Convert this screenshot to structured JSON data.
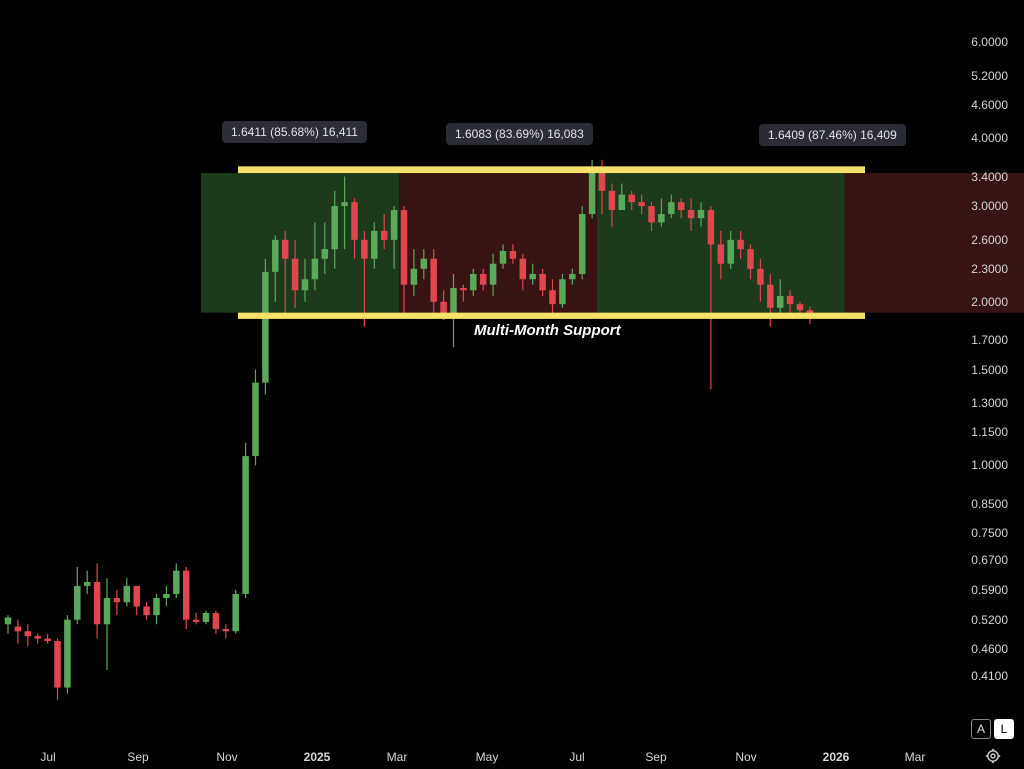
{
  "chart_data": {
    "type": "candlestick",
    "y_scale": "log",
    "ylim": [
      0.37,
      6.6
    ],
    "y_ticks": [
      "6.0000",
      "5.2000",
      "4.6000",
      "4.0000",
      "3.4000",
      "3.0000",
      "2.6000",
      "2.3000",
      "2.0000",
      "1.7000",
      "1.5000",
      "1.3000",
      "1.1500",
      "1.0000",
      "0.8500",
      "0.7500",
      "0.6700",
      "0.5900",
      "0.5200",
      "0.4600",
      "0.4100"
    ],
    "x_ticks": [
      {
        "label": "Jul",
        "bold": false
      },
      {
        "label": "Sep",
        "bold": false
      },
      {
        "label": "Nov",
        "bold": false
      },
      {
        "label": "2025",
        "bold": true
      },
      {
        "label": "Mar",
        "bold": false
      },
      {
        "label": "May",
        "bold": false
      },
      {
        "label": "Jul",
        "bold": false
      },
      {
        "label": "Sep",
        "bold": false
      },
      {
        "label": "Nov",
        "bold": false
      },
      {
        "label": "2026",
        "bold": true
      },
      {
        "label": "Mar",
        "bold": false
      }
    ],
    "candles": [
      [
        0.51,
        0.525,
        0.53,
        0.49
      ],
      [
        0.505,
        0.495,
        0.52,
        0.47
      ],
      [
        0.495,
        0.485,
        0.51,
        0.465
      ],
      [
        0.485,
        0.48,
        0.49,
        0.47
      ],
      [
        0.48,
        0.475,
        0.49,
        0.47
      ],
      [
        0.475,
        0.39,
        0.48,
        0.37
      ],
      [
        0.39,
        0.52,
        0.53,
        0.38
      ],
      [
        0.52,
        0.6,
        0.65,
        0.51
      ],
      [
        0.6,
        0.61,
        0.64,
        0.58
      ],
      [
        0.61,
        0.51,
        0.66,
        0.48
      ],
      [
        0.51,
        0.57,
        0.62,
        0.42
      ],
      [
        0.57,
        0.56,
        0.59,
        0.53
      ],
      [
        0.56,
        0.6,
        0.62,
        0.55
      ],
      [
        0.6,
        0.55,
        0.6,
        0.53
      ],
      [
        0.55,
        0.53,
        0.56,
        0.52
      ],
      [
        0.53,
        0.57,
        0.58,
        0.51
      ],
      [
        0.57,
        0.58,
        0.6,
        0.55
      ],
      [
        0.58,
        0.64,
        0.66,
        0.57
      ],
      [
        0.64,
        0.52,
        0.65,
        0.5
      ],
      [
        0.52,
        0.515,
        0.535,
        0.51
      ],
      [
        0.515,
        0.535,
        0.54,
        0.51
      ],
      [
        0.535,
        0.5,
        0.54,
        0.49
      ],
      [
        0.5,
        0.495,
        0.51,
        0.48
      ],
      [
        0.495,
        0.58,
        0.59,
        0.49
      ],
      [
        0.58,
        1.04,
        1.1,
        0.57
      ],
      [
        1.04,
        1.42,
        1.5,
        1.0
      ],
      [
        1.42,
        2.27,
        2.4,
        1.35
      ],
      [
        2.27,
        2.6,
        2.65,
        2.0
      ],
      [
        2.6,
        2.4,
        2.7,
        1.9
      ],
      [
        2.4,
        2.1,
        2.6,
        1.95
      ],
      [
        2.1,
        2.2,
        2.4,
        2.0
      ],
      [
        2.2,
        2.4,
        2.8,
        2.1
      ],
      [
        2.4,
        2.5,
        2.8,
        2.25
      ],
      [
        2.5,
        3.0,
        3.2,
        2.3
      ],
      [
        3.0,
        3.05,
        3.4,
        2.5
      ],
      [
        3.05,
        2.6,
        3.1,
        2.4
      ],
      [
        2.6,
        2.4,
        2.7,
        1.8
      ],
      [
        2.4,
        2.7,
        2.8,
        2.3
      ],
      [
        2.7,
        2.6,
        2.9,
        2.5
      ],
      [
        2.6,
        2.95,
        3.0,
        2.3
      ],
      [
        2.95,
        2.15,
        3.0,
        1.9
      ],
      [
        2.15,
        2.3,
        2.5,
        2.05
      ],
      [
        2.3,
        2.4,
        2.5,
        2.2
      ],
      [
        2.4,
        2.0,
        2.5,
        1.9
      ],
      [
        2.0,
        1.9,
        2.1,
        1.85
      ],
      [
        1.9,
        2.12,
        2.25,
        1.65
      ],
      [
        2.12,
        2.1,
        2.15,
        2.0
      ],
      [
        2.1,
        2.25,
        2.3,
        2.05
      ],
      [
        2.25,
        2.15,
        2.3,
        2.1
      ],
      [
        2.15,
        2.35,
        2.45,
        2.05
      ],
      [
        2.35,
        2.48,
        2.55,
        2.3
      ],
      [
        2.48,
        2.4,
        2.55,
        2.35
      ],
      [
        2.4,
        2.2,
        2.45,
        2.1
      ],
      [
        2.2,
        2.25,
        2.35,
        2.15
      ],
      [
        2.25,
        2.1,
        2.3,
        2.05
      ],
      [
        2.1,
        1.98,
        2.2,
        1.9
      ],
      [
        1.98,
        2.2,
        2.25,
        1.95
      ],
      [
        2.2,
        2.25,
        2.3,
        2.15
      ],
      [
        2.25,
        2.9,
        3.0,
        2.2
      ],
      [
        2.9,
        3.5,
        3.65,
        2.85
      ],
      [
        3.5,
        3.2,
        3.65,
        2.9
      ],
      [
        3.2,
        2.95,
        3.3,
        2.75
      ],
      [
        2.95,
        3.15,
        3.3,
        3.0
      ],
      [
        3.15,
        3.05,
        3.2,
        2.95
      ],
      [
        3.05,
        3.0,
        3.15,
        2.9
      ],
      [
        3.0,
        2.8,
        3.05,
        2.7
      ],
      [
        2.8,
        2.9,
        3.1,
        2.75
      ],
      [
        2.9,
        3.05,
        3.15,
        2.85
      ],
      [
        3.05,
        2.95,
        3.1,
        2.85
      ],
      [
        2.95,
        2.85,
        3.1,
        2.7
      ],
      [
        2.85,
        2.95,
        3.05,
        2.75
      ],
      [
        2.95,
        2.55,
        3.0,
        1.38
      ],
      [
        2.55,
        2.35,
        2.7,
        2.2
      ],
      [
        2.35,
        2.6,
        2.7,
        2.3
      ],
      [
        2.6,
        2.5,
        2.7,
        2.4
      ],
      [
        2.5,
        2.3,
        2.55,
        2.2
      ],
      [
        2.3,
        2.15,
        2.4,
        2.0
      ],
      [
        2.15,
        1.95,
        2.25,
        1.8
      ],
      [
        1.95,
        2.05,
        2.2,
        1.9
      ],
      [
        2.05,
        1.98,
        2.1,
        1.9
      ],
      [
        1.98,
        1.93,
        2.0,
        1.88
      ],
      [
        1.93,
        1.88,
        1.96,
        1.82
      ]
    ],
    "support_band": {
      "low": 1.86,
      "high": 1.91
    },
    "resistance_band": {
      "low": 3.45,
      "high": 3.55
    },
    "zones": [
      {
        "color": "green",
        "from": 20,
        "to": 40,
        "opacity": 0.28
      },
      {
        "color": "red",
        "from": 40,
        "to": 60,
        "opacity": 0.28
      },
      {
        "color": "green",
        "from": 60,
        "to": 85,
        "opacity": 0.28
      },
      {
        "color": "red",
        "from": 85,
        "to": 110,
        "opacity": 0.28
      },
      {
        "color": "green",
        "from": 110,
        "to": 125,
        "opacity": 0.28
      }
    ],
    "measure_labels": [
      "1.6411 (85.68%) 16,411",
      "1.6083 (83.69%) 16,083",
      "1.6409 (87.46%) 16,409"
    ],
    "annotation": "Multi-Month Support"
  },
  "colors": {
    "up": "#5aa95a",
    "down": "#e0464d",
    "band": "#f5e06a",
    "zone_green": "#1f3d1f",
    "zone_red": "#3a1414",
    "background": "#000000"
  },
  "controls": {
    "auto_label": "A",
    "log_label": "L",
    "settings_icon": "gear-icon"
  }
}
